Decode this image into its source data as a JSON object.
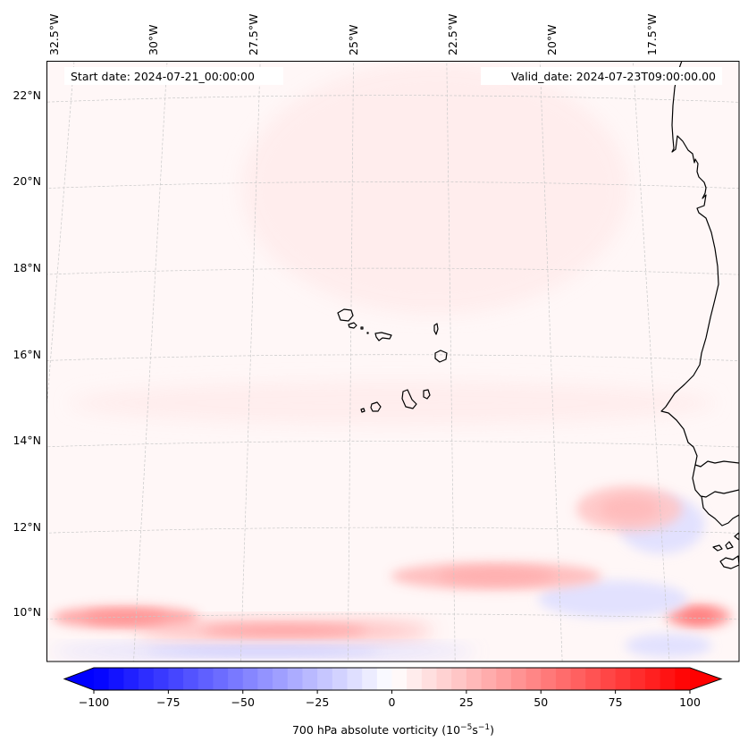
{
  "chart_data": {
    "type": "heatmap",
    "title": "",
    "map_projection": "Lambert-style conic (curved graticule)",
    "xlabel": "",
    "ylabel": "",
    "variable": "700 hPa absolute vorticity",
    "units": "10^-5 s^-1",
    "annotations": {
      "start_date": "Start date: 2024-07-21_00:00:00",
      "valid_date": "Valid_date: 2024-07-23T09:00:00.00"
    },
    "lon_ticks": [
      {
        "value": -32.5,
        "label": "32.5°W"
      },
      {
        "value": -30.0,
        "label": "30°W"
      },
      {
        "value": -27.5,
        "label": "27.5°W"
      },
      {
        "value": -25.0,
        "label": "25°W"
      },
      {
        "value": -22.5,
        "label": "22.5°W"
      },
      {
        "value": -20.0,
        "label": "20°W"
      },
      {
        "value": -17.5,
        "label": "17.5°W"
      }
    ],
    "lat_ticks": [
      {
        "value": 22,
        "label": "22°N"
      },
      {
        "value": 20,
        "label": "20°N"
      },
      {
        "value": 18,
        "label": "18°N"
      },
      {
        "value": 16,
        "label": "16°N"
      },
      {
        "value": 14,
        "label": "14°N"
      },
      {
        "value": 12,
        "label": "12°N"
      },
      {
        "value": 10,
        "label": "10°N"
      }
    ],
    "lon_range": [
      -32.6,
      -15.3
    ],
    "lat_range": [
      8.9,
      22.8
    ],
    "grid": true,
    "colorbar": {
      "orientation": "horizontal",
      "placement": "bottom",
      "range": [
        -100,
        100
      ],
      "step": 5,
      "extend": "both",
      "colormap": "bwr",
      "ticks": [
        -100,
        -75,
        -50,
        -25,
        0,
        25,
        50,
        75,
        100
      ],
      "tick_labels": [
        "−100",
        "−75",
        "−50",
        "−25",
        "0",
        "25",
        "50",
        "75",
        "100"
      ],
      "label_main": "700 hPa absolute vorticity (10",
      "label_sup1": "−5",
      "label_mid": "s",
      "label_sup2": "−1",
      "label_end": ")"
    },
    "features": [
      {
        "name": "Cape Verde islands",
        "type": "coastline"
      },
      {
        "name": "West African coastline (Mauritania, Senegal, Gambia, Guinea-Bissau)",
        "type": "coastline"
      }
    ],
    "field_regions": [
      {
        "desc": "background weak positive vorticity",
        "value": 3
      },
      {
        "desc": "broad positive band NE across upper center",
        "lat": [
          17,
          22.8
        ],
        "lon": [
          -28,
          -18
        ],
        "value": 8
      },
      {
        "desc": "positive streak near 15N",
        "lat": [
          14.5,
          15.5
        ],
        "lon": [
          -32,
          -16
        ],
        "value": 8
      },
      {
        "desc": "positive max near 10N west",
        "lat": [
          9.7,
          10.3
        ],
        "lon": [
          -32,
          -28.5
        ],
        "value": 35
      },
      {
        "desc": "positive band near 9.6N",
        "lat": [
          9.4,
          9.9
        ],
        "lon": [
          -30,
          -23
        ],
        "value": 30
      },
      {
        "desc": "negative band near 9.2N",
        "lat": [
          9.0,
          9.4
        ],
        "lon": [
          -32,
          -22
        ],
        "value": -20
      },
      {
        "desc": "positive max near 10N east",
        "lat": [
          9.8,
          10.3
        ],
        "lon": [
          -17.5,
          -16
        ],
        "value": 40
      },
      {
        "desc": "negative patch near 10.5N",
        "lat": [
          10.0,
          10.8
        ],
        "lon": [
          -20.5,
          -17
        ],
        "value": -15
      },
      {
        "desc": "negative patch near 12N coast",
        "lat": [
          11.5,
          12.8
        ],
        "lon": [
          -18.5,
          -16.5
        ],
        "value": -12
      },
      {
        "desc": "positive streak near 11N",
        "lat": [
          10.6,
          11.2
        ],
        "lon": [
          -24,
          -19
        ],
        "value": 25
      },
      {
        "desc": "positive streak near 12.5N",
        "lat": [
          12,
          13
        ],
        "lon": [
          -19.5,
          -17
        ],
        "value": 20
      },
      {
        "desc": "negative patch near 9.4N east",
        "lat": [
          9.1,
          9.6
        ],
        "lon": [
          -18.5,
          -16.5
        ],
        "value": -15
      }
    ]
  }
}
